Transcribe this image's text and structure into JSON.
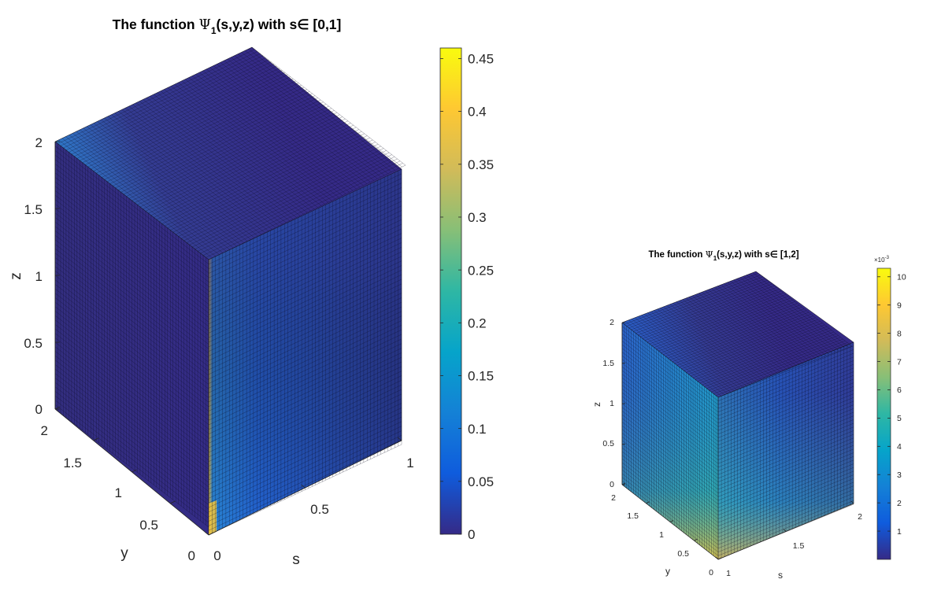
{
  "chart_data": [
    {
      "type": "surface3d-cube",
      "title_prefix": "The function ",
      "title_symbol": "Ψ",
      "title_sub": "1",
      "title_suffix": "(s,y,z) with s∈ [0,1]",
      "xlabel": "s",
      "ylabel": "y",
      "zlabel": "z",
      "x_range": [
        0,
        1
      ],
      "y_range": [
        0,
        2
      ],
      "z_range": [
        0,
        2
      ],
      "x_ticks": [
        "0",
        "0.5",
        "1"
      ],
      "y_ticks": [
        "0",
        "0.5",
        "1",
        "1.5",
        "2"
      ],
      "z_ticks": [
        "0",
        "0.5",
        "1",
        "1.5",
        "2"
      ],
      "colorbar": {
        "range": [
          0,
          0.46
        ],
        "ticks": [
          "0",
          "0.05",
          "0.1",
          "0.15",
          "0.2",
          "0.25",
          "0.3",
          "0.35",
          "0.4",
          "0.45"
        ],
        "tick_values": [
          0,
          0.05,
          0.1,
          0.15,
          0.2,
          0.25,
          0.3,
          0.35,
          0.4,
          0.45
        ],
        "exponent": ""
      },
      "colormap": "parula",
      "max_location": "s=0, y=0, z=0",
      "max_value": 0.46
    },
    {
      "type": "surface3d-cube",
      "title_prefix": "The function ",
      "title_symbol": "Ψ",
      "title_sub": "1",
      "title_suffix": "(s,y,z) with s∈  [1,2]",
      "xlabel": "s",
      "ylabel": "y",
      "zlabel": "z",
      "x_range": [
        1,
        2
      ],
      "y_range": [
        0,
        2
      ],
      "z_range": [
        0,
        2
      ],
      "x_ticks": [
        "1",
        "1.5",
        "2"
      ],
      "y_ticks": [
        "0",
        "0.5",
        "1",
        "1.5",
        "2"
      ],
      "z_ticks": [
        "0",
        "0.5",
        "1",
        "1.5",
        "2"
      ],
      "colorbar": {
        "range": [
          0,
          10.3
        ],
        "ticks": [
          "1",
          "2",
          "3",
          "4",
          "5",
          "6",
          "7",
          "8",
          "9",
          "10"
        ],
        "tick_values": [
          1,
          2,
          3,
          4,
          5,
          6,
          7,
          8,
          9,
          10
        ],
        "exponent": "×10",
        "exponent_power": "-3"
      },
      "colormap": "parula",
      "max_location": "s=1, y=0, z=0",
      "max_value": 10.3
    }
  ]
}
